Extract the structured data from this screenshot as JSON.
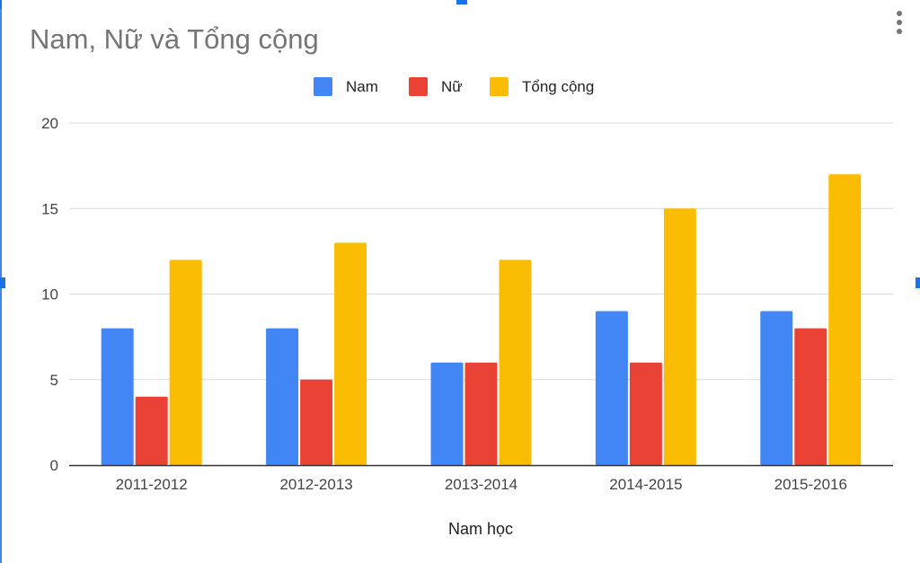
{
  "chart_data": {
    "type": "bar",
    "title": "Nam, Nữ và Tổng cộng",
    "xlabel": "Nam học",
    "ylabel": "",
    "categories": [
      "2011-2012",
      "2012-2013",
      "2013-2014",
      "2014-2015",
      "2015-2016"
    ],
    "series": [
      {
        "name": "Nam",
        "color": "#4285F4",
        "values": [
          8,
          8,
          6,
          9,
          9
        ]
      },
      {
        "name": "Nữ",
        "color": "#EA4335",
        "values": [
          4,
          5,
          6,
          6,
          8
        ]
      },
      {
        "name": "Tổng cộng",
        "color": "#FBBC04",
        "values": [
          12,
          13,
          12,
          15,
          17
        ]
      }
    ],
    "ylim": [
      0,
      20
    ],
    "yticks": [
      "0",
      "5",
      "10",
      "15",
      "20"
    ],
    "grid": true,
    "legend_position": "top"
  },
  "icons": {
    "menu": "more-vert-icon"
  },
  "colors": {
    "selection_handle": "#1a73e8",
    "gridline": "#d9d9d9",
    "axis": "#333333"
  }
}
